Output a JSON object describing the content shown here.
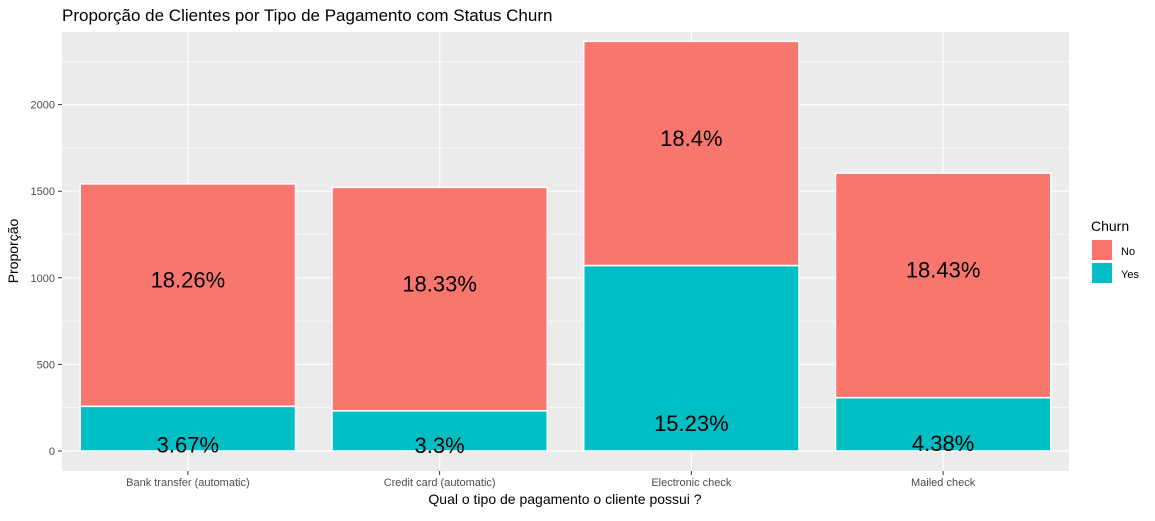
{
  "chart_data": {
    "type": "bar",
    "stacked": true,
    "title": "Proporção de Clientes por Tipo de Pagamento com Status Churn",
    "xlabel": "Qual o tipo de pagamento o cliente possui ?",
    "ylabel": "Proporção",
    "ylim": [
      0,
      2480
    ],
    "yticks": [
      0,
      500,
      1000,
      1500,
      2000
    ],
    "ytick_labels": [
      "0",
      "500",
      "1000",
      "1500",
      "2000"
    ],
    "grid": true,
    "categories": [
      "Bank transfer (automatic)",
      "Credit card (automatic)",
      "Electronic check",
      "Mailed check"
    ],
    "series": [
      {
        "name": "Yes",
        "color": "#00BFC4",
        "values": [
          258,
          232,
          1071,
          308
        ],
        "labels": [
          "3.67%",
          "3.3%",
          "15.23%",
          "4.38%"
        ]
      },
      {
        "name": "No",
        "color": "#F8766D",
        "values": [
          1284,
          1290,
          1294,
          1296
        ],
        "labels": [
          "18.26%",
          "18.33%",
          "18.4%",
          "18.43%"
        ]
      }
    ],
    "legend": {
      "title": "Churn",
      "position": "right",
      "items": [
        {
          "label": "No",
          "color": "#F8766D"
        },
        {
          "label": "Yes",
          "color": "#00BFC4"
        }
      ]
    },
    "panel_color": "#EBEBEB",
    "grid_color": "#FFFFFF"
  }
}
